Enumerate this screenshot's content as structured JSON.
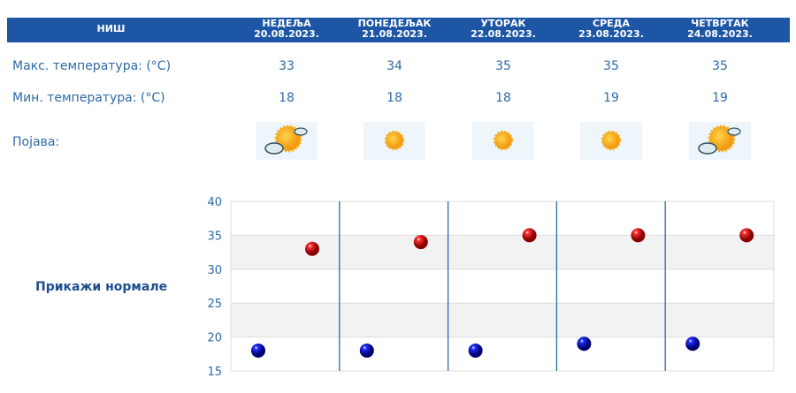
{
  "header": {
    "city": "НИШ",
    "days": [
      {
        "day": "НЕДЕЉА",
        "date": "20.08.2023.",
        "icon": "partly-cloudy-icon"
      },
      {
        "day": "ПОНЕДЕЉАК",
        "date": "21.08.2023.",
        "icon": "sunny-icon"
      },
      {
        "day": "УТОРАК",
        "date": "22.08.2023.",
        "icon": "sunny-icon"
      },
      {
        "day": "СРЕДА",
        "date": "23.08.2023.",
        "icon": "sunny-icon"
      },
      {
        "day": "ЧЕТВРТАК",
        "date": "24.08.2023.",
        "icon": "partly-cloudy-icon"
      }
    ]
  },
  "rows": {
    "max_label": "Макс. температура: (°C)",
    "min_label": "Мин. температура: (°C)",
    "phenomenon_label": "Појава:",
    "max": [
      "33",
      "34",
      "35",
      "35",
      "35"
    ],
    "min": [
      "18",
      "18",
      "18",
      "19",
      "19"
    ]
  },
  "show_normals": "Прикажи нормале",
  "chart_data": {
    "type": "scatter",
    "ylim": [
      15,
      40
    ],
    "yticks": [
      "15",
      "20",
      "25",
      "30",
      "35",
      "40"
    ],
    "series": [
      {
        "values": [
          18,
          18,
          18,
          19,
          19
        ],
        "color": "#0000cc"
      },
      {
        "values": [
          33,
          34,
          35,
          35,
          35
        ],
        "color": "#dd0000"
      }
    ]
  }
}
